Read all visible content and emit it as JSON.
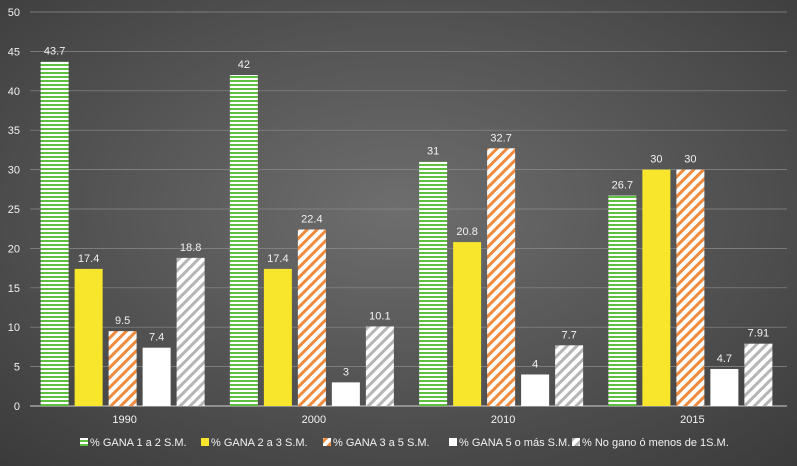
{
  "chart_data": {
    "type": "bar",
    "categories": [
      "1990",
      "2000",
      "2010",
      "2015"
    ],
    "ylim": [
      0,
      50
    ],
    "yticks": [
      0,
      5,
      10,
      15,
      20,
      25,
      30,
      35,
      40,
      45,
      50
    ],
    "grid": true,
    "legend_position": "bottom",
    "background": "dark-gray-radial",
    "series": [
      {
        "name": "% GANA 1 a 2 S.M.",
        "values": [
          43.7,
          42,
          31,
          26.7
        ],
        "labels": [
          "43.7",
          "42",
          "31",
          "26.7"
        ],
        "color": "#5fbf3f",
        "pattern": "horizontal-stripes"
      },
      {
        "name": "% GANA 2 a 3 S.M.",
        "values": [
          17.4,
          17.4,
          20.8,
          30
        ],
        "labels": [
          "17.4",
          "17.4",
          "20.8",
          "30"
        ],
        "color": "#f7e62b",
        "pattern": "solid"
      },
      {
        "name": "% GANA 3 a 5 S.M.",
        "values": [
          9.5,
          22.4,
          32.7,
          30
        ],
        "labels": [
          "9.5",
          "22.4",
          "32.7",
          "30"
        ],
        "color": "#f08a3c",
        "pattern": "diagonal-stripes"
      },
      {
        "name": "% GANA 5 o más S.M.",
        "values": [
          7.4,
          3,
          4,
          4.7
        ],
        "labels": [
          "7.4",
          "3",
          "4",
          "4.7"
        ],
        "color": "#ffffff",
        "pattern": "solid"
      },
      {
        "name": "% No gano  ó menos de 1S.M.",
        "values": [
          18.8,
          10.1,
          7.7,
          7.91
        ],
        "labels": [
          "18.8",
          "10.1",
          "7.7",
          "7.91"
        ],
        "color": "#c8c8c8",
        "pattern": "diagonal-stripes"
      }
    ]
  }
}
